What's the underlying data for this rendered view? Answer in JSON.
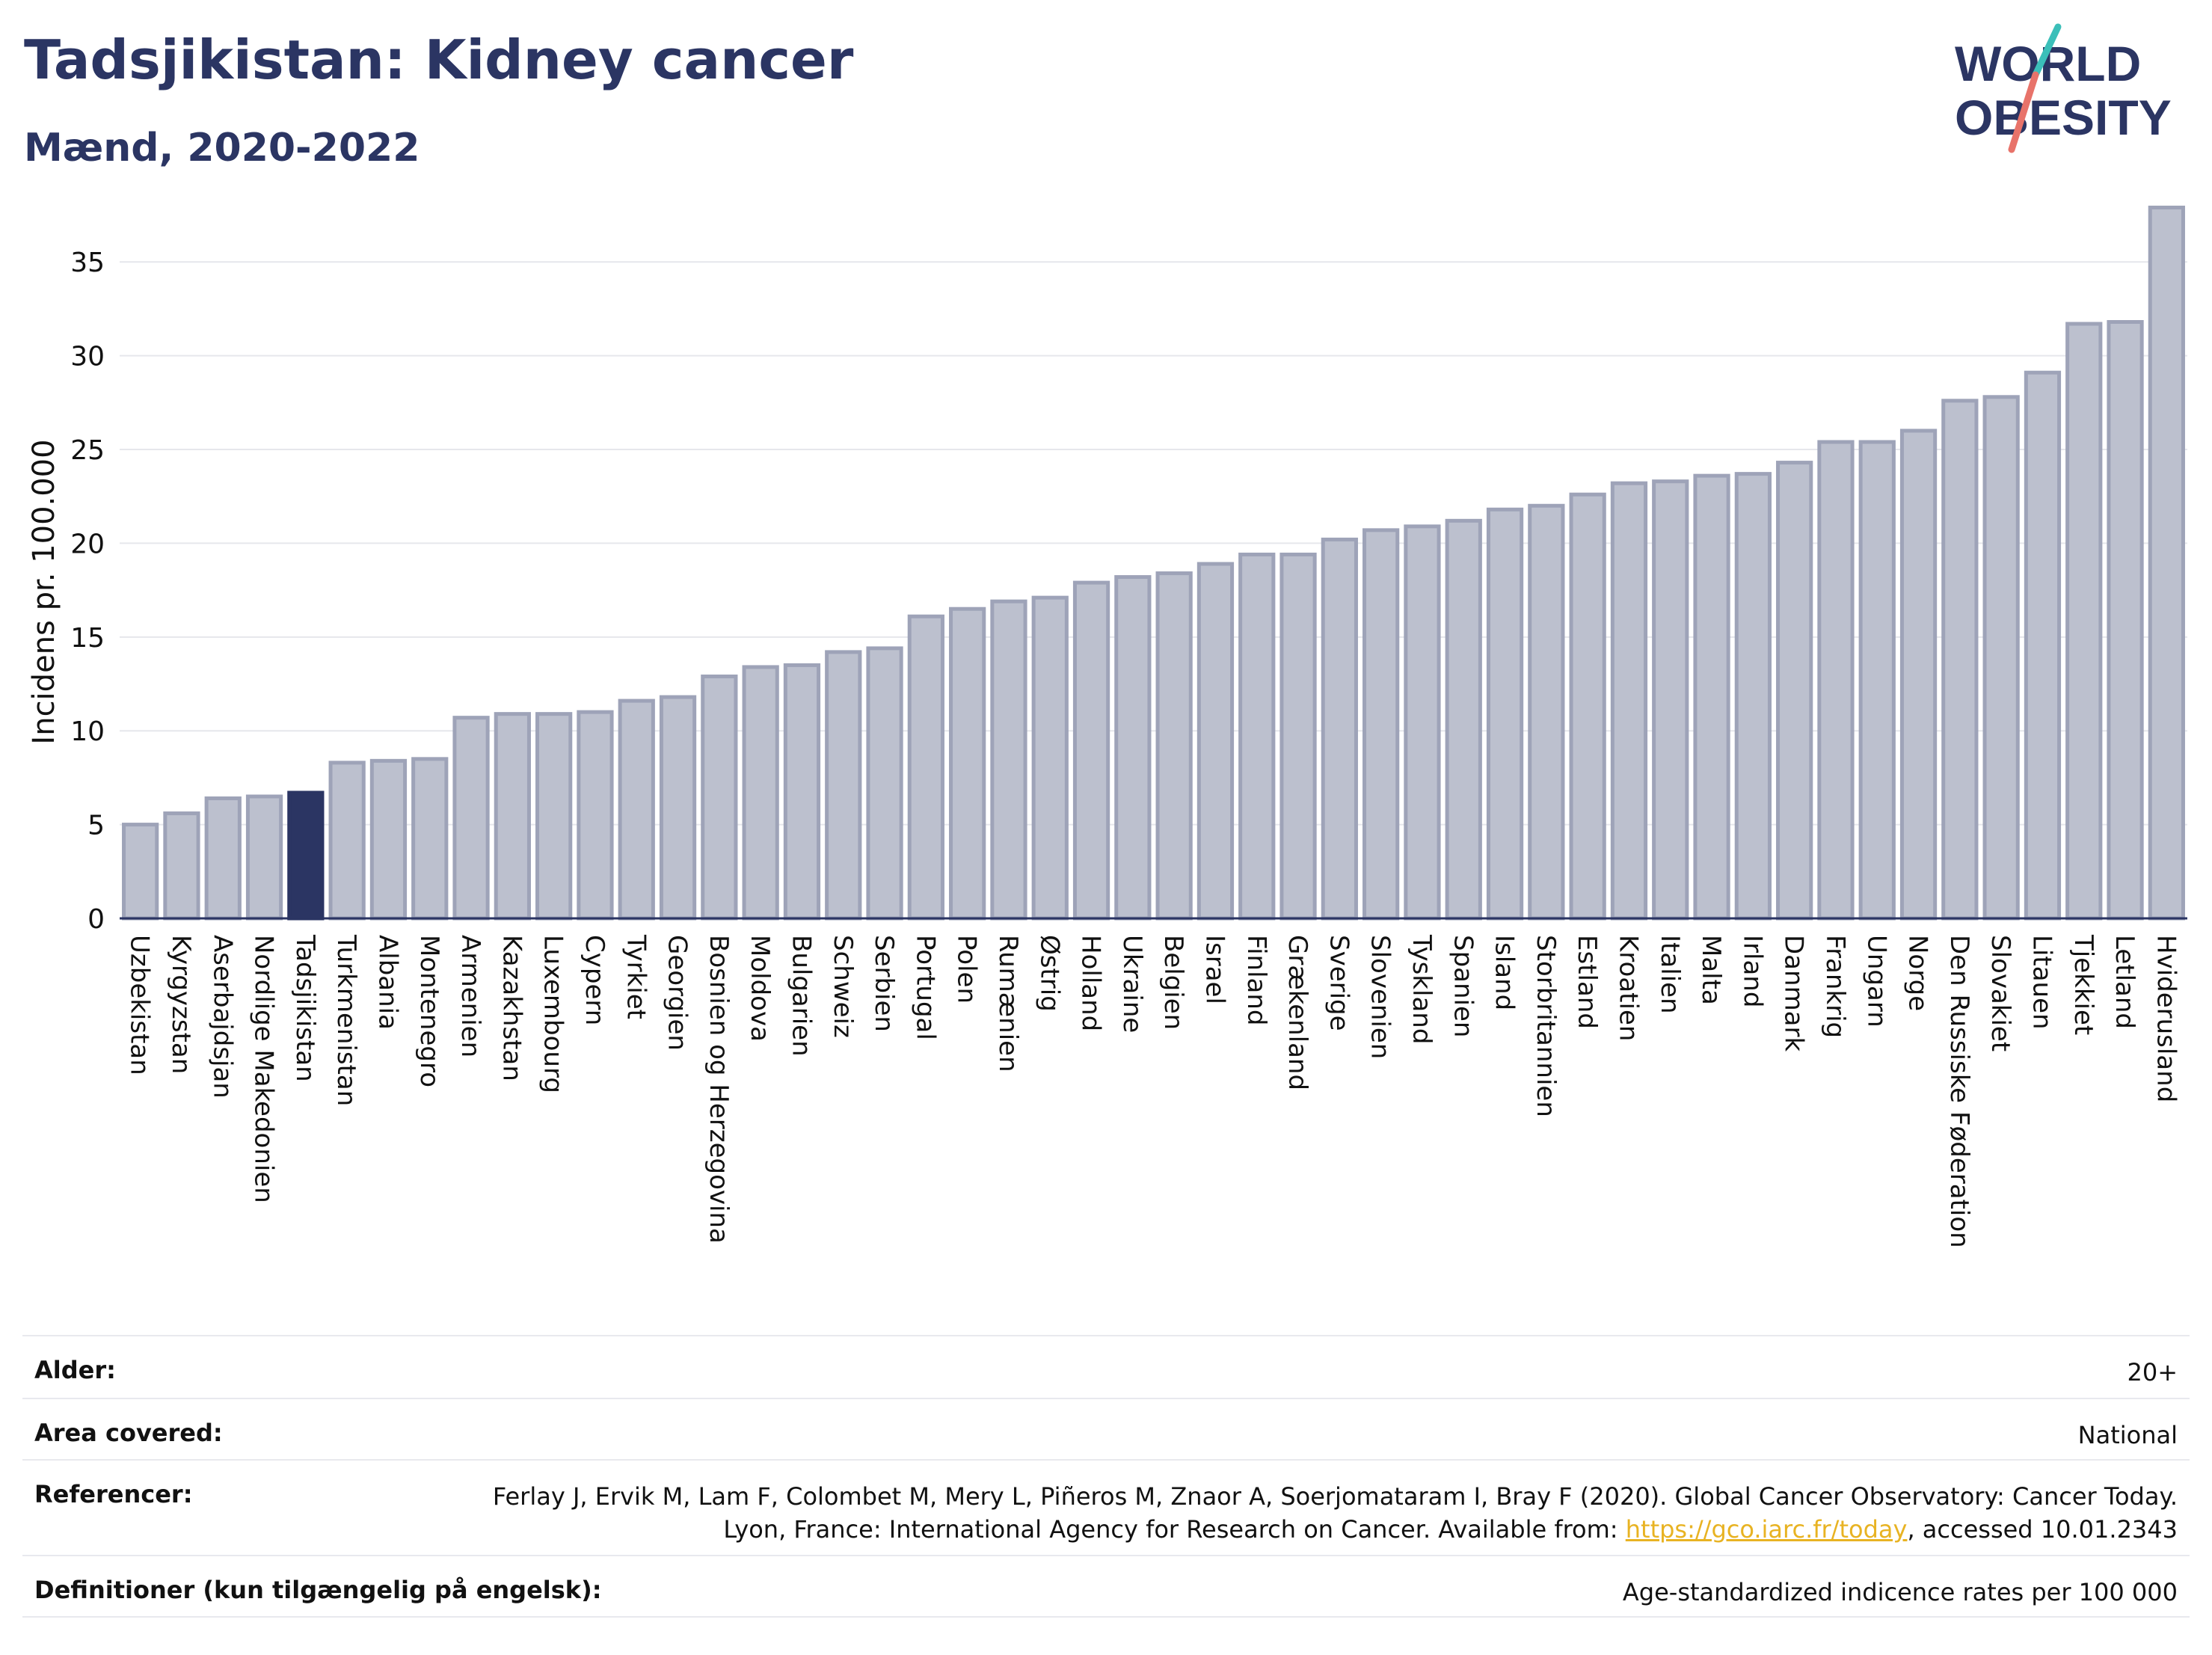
{
  "header": {
    "title": "Tadsjikistan: Kidney cancer",
    "subtitle": "Mænd, 2020-2022"
  },
  "logo": {
    "line1": "WORLD",
    "line2": "OBESITY"
  },
  "colors": {
    "highlight": "#2b3563",
    "bar_fill": "#bcc0ce",
    "bar_stroke": "#9ea3b8",
    "grid": "#e6e7ec",
    "logo_text": "#2b3563",
    "logo_teal": "#3bbfb9",
    "logo_coral": "#e8736a"
  },
  "chart_data": {
    "type": "bar",
    "ylabel": "Incidens pr. 100.000",
    "ylim": [
      0,
      38
    ],
    "yticks": [
      0,
      5,
      10,
      15,
      20,
      25,
      30,
      35
    ],
    "grid": true,
    "highlight": "Tadsjikistan",
    "categories": [
      "Uzbekistan",
      "Kyrgyzstan",
      "Aserbajdsjan",
      "Nordlige Makedonien",
      "Tadsjikistan",
      "Turkmenistan",
      "Albania",
      "Montenegro",
      "Armenien",
      "Kazakhstan",
      "Luxembourg",
      "Cypern",
      "Tyrkiet",
      "Georgien",
      "Bosnien og Herzegovina",
      "Moldova",
      "Bulgarien",
      "Schweiz",
      "Serbien",
      "Portugal",
      "Polen",
      "Rumænien",
      "Østrig",
      "Holland",
      "Ukraine",
      "Belgien",
      "Israel",
      "Finland",
      "Grækenland",
      "Sverige",
      "Slovenien",
      "Tyskland",
      "Spanien",
      "Island",
      "Storbritannien",
      "Estland",
      "Kroatien",
      "Italien",
      "Malta",
      "Irland",
      "Danmark",
      "Frankrig",
      "Ungarn",
      "Norge",
      "Den Russiske Føderation",
      "Slovakiet",
      "Litauen",
      "Tjekkiet",
      "Letland",
      "Hviderusland"
    ],
    "values": [
      5.0,
      5.6,
      6.4,
      6.5,
      6.7,
      8.3,
      8.4,
      8.5,
      10.7,
      10.9,
      10.9,
      11.0,
      11.6,
      11.8,
      12.9,
      13.4,
      13.5,
      14.2,
      14.4,
      16.1,
      16.5,
      16.9,
      17.1,
      17.9,
      18.2,
      18.4,
      18.9,
      19.4,
      19.4,
      20.2,
      20.7,
      20.9,
      21.2,
      21.8,
      22.0,
      22.6,
      23.2,
      23.3,
      23.6,
      23.7,
      24.3,
      25.4,
      25.4,
      26.0,
      27.6,
      27.8,
      29.1,
      31.7,
      31.8,
      37.9
    ]
  },
  "info_table": {
    "age_label": "Alder:",
    "age_value": "20+",
    "area_label": "Area covered:",
    "area_value": "National",
    "ref_label": "Referencer:",
    "ref_text_1": "Ferlay J, Ervik M, Lam F, Colombet M, Mery L, Piñeros M, Znaor A, Soerjomataram I, Bray F (2020). Global Cancer Observatory: Cancer Today. Lyon, France: International Agency for Research on Cancer. Available from: ",
    "ref_link": "https://gco.iarc.fr/today",
    "ref_text_2": ", accessed 10.01.2343",
    "def_label": "Definitioner (kun tilgængelig på engelsk):",
    "def_value": "Age-standardized indicence rates per 100 000"
  }
}
